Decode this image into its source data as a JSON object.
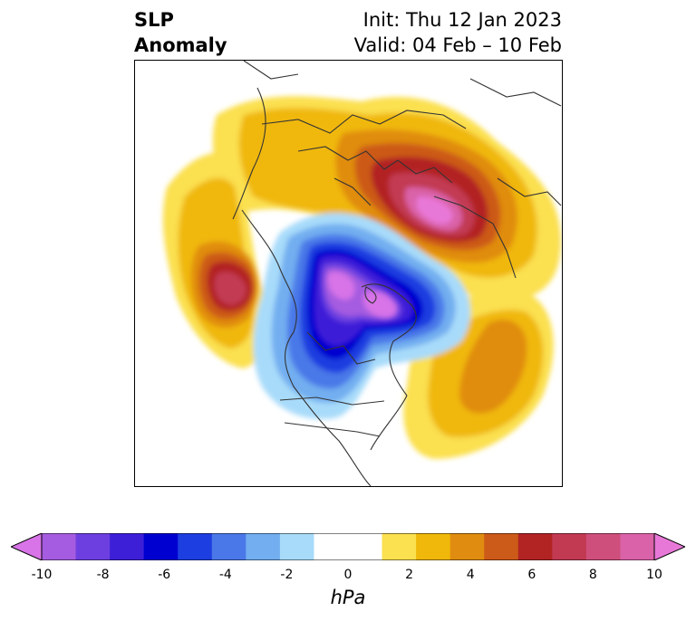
{
  "header": {
    "title_line1": "SLP",
    "title_line2": "Anomaly",
    "init_text": "Init: Thu 12 Jan 2023",
    "valid_text": "Valid: 04 Feb – 10 Feb"
  },
  "map": {
    "projection": "north-polar-stereographic",
    "colors": {
      "neg10": "#d873e8",
      "neg9": "#a55ce0",
      "neg8": "#6d3fe0",
      "neg7": "#3d1fd8",
      "neg6": "#0000d0",
      "neg5": "#1d3ee0",
      "neg4": "#4a78e8",
      "neg3": "#72aef0",
      "neg2": "#a8dbfa",
      "zero": "#ffffff",
      "pos2": "#fbe04f",
      "pos3": "#f0b80a",
      "pos4": "#e08c10",
      "pos5": "#cc5a18",
      "pos6": "#b22424",
      "pos7": "#c23a52",
      "pos8": "#cf4f7c",
      "pos9": "#da62a8",
      "pos10": "#e878d8"
    }
  },
  "colorbar": {
    "unit": "hPa",
    "tick_labels": [
      "-10",
      "-8",
      "-6",
      "-4",
      "-2",
      "0",
      "2",
      "4",
      "6",
      "8",
      "10"
    ],
    "segment_colors": [
      "#d873e8",
      "#a55ce0",
      "#6d3fe0",
      "#3d1fd8",
      "#0000d0",
      "#1d3ee0",
      "#4a78e8",
      "#72aef0",
      "#a8dbfa",
      "#ffffff",
      "#ffffff",
      "#fbe04f",
      "#f0b80a",
      "#e08c10",
      "#cc5a18",
      "#b22424",
      "#c23a52",
      "#cf4f7c",
      "#da62a8",
      "#e878d8"
    ]
  }
}
